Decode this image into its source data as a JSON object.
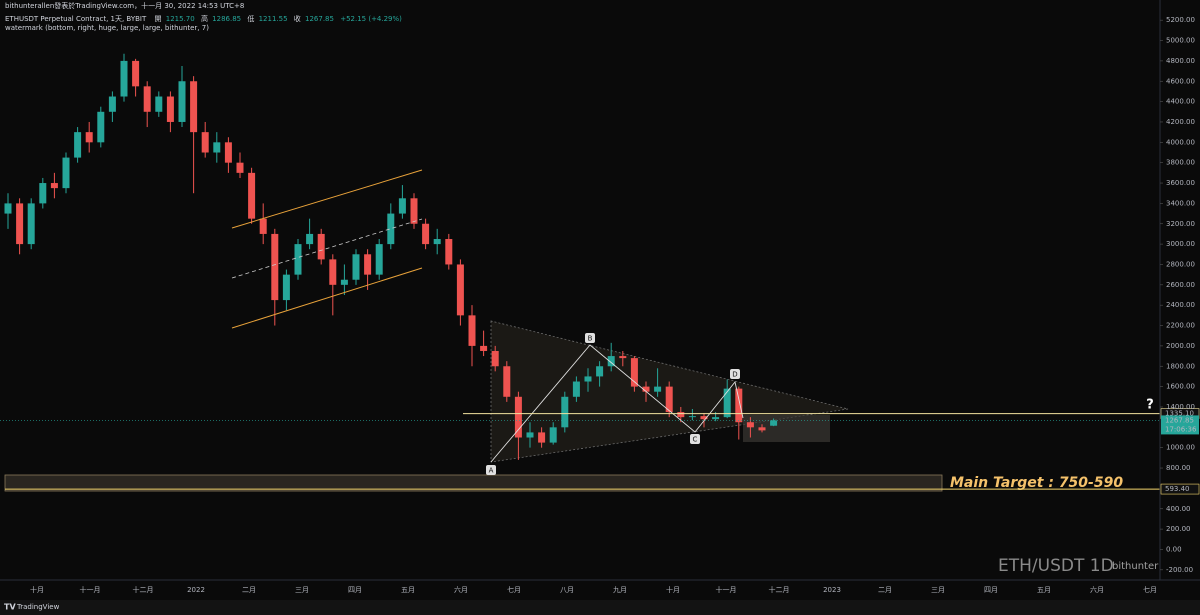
{
  "chart_data": {
    "type": "candlestick",
    "byline": "bithunterallen發表於TradingView.com，十一月 30, 2022 14:53 UTC+8",
    "title": "ETHUSDT Perpetual Contract, 1天, BYBIT",
    "ohlc_legend": {
      "labels": [
        "開",
        "高",
        "低",
        "收"
      ],
      "value_labels": [
        "1215.70",
        "1286.85",
        "1211.55",
        "1267.85"
      ],
      "change": "+52.15 (+4.29%)"
    },
    "indicator": "watermark (bottom, right, huge, large, large, bithunter, 7)",
    "up_color": "#26a69a",
    "down_color": "#ef5350",
    "candles": [
      [
        3300,
        3500,
        3150,
        3400
      ],
      [
        3400,
        3450,
        2900,
        3000
      ],
      [
        3000,
        3450,
        2950,
        3400
      ],
      [
        3400,
        3650,
        3350,
        3600
      ],
      [
        3600,
        3700,
        3450,
        3550
      ],
      [
        3550,
        3900,
        3500,
        3850
      ],
      [
        3850,
        4150,
        3800,
        4100
      ],
      [
        4100,
        4200,
        3900,
        4000
      ],
      [
        4000,
        4350,
        3950,
        4300
      ],
      [
        4300,
        4500,
        4200,
        4450
      ],
      [
        4450,
        4870,
        4400,
        4800
      ],
      [
        4800,
        4820,
        4450,
        4550
      ],
      [
        4550,
        4600,
        4150,
        4300
      ],
      [
        4300,
        4500,
        4250,
        4450
      ],
      [
        4450,
        4500,
        4100,
        4200
      ],
      [
        4200,
        4750,
        4150,
        4600
      ],
      [
        4600,
        4650,
        3500,
        4100
      ],
      [
        4100,
        4200,
        3850,
        3900
      ],
      [
        3900,
        4100,
        3800,
        4000
      ],
      [
        4000,
        4050,
        3700,
        3800
      ],
      [
        3800,
        3900,
        3650,
        3700
      ],
      [
        3700,
        3750,
        3200,
        3250
      ],
      [
        3250,
        3400,
        3000,
        3100
      ],
      [
        3100,
        3150,
        2200,
        2450
      ],
      [
        2450,
        2750,
        2350,
        2700
      ],
      [
        2700,
        3050,
        2650,
        3000
      ],
      [
        3000,
        3250,
        2950,
        3100
      ],
      [
        3100,
        3150,
        2800,
        2850
      ],
      [
        2850,
        2900,
        2300,
        2600
      ],
      [
        2600,
        2800,
        2500,
        2650
      ],
      [
        2650,
        2950,
        2600,
        2900
      ],
      [
        2900,
        2950,
        2550,
        2700
      ],
      [
        2700,
        3050,
        2650,
        3000
      ],
      [
        3000,
        3400,
        2950,
        3300
      ],
      [
        3300,
        3580,
        3250,
        3450
      ],
      [
        3450,
        3500,
        3150,
        3200
      ],
      [
        3200,
        3250,
        2950,
        3000
      ],
      [
        3000,
        3150,
        2900,
        3050
      ],
      [
        3050,
        3100,
        2750,
        2800
      ],
      [
        2800,
        2850,
        2200,
        2300
      ],
      [
        2300,
        2400,
        1800,
        2000
      ],
      [
        2000,
        2150,
        1900,
        1950
      ],
      [
        1950,
        2000,
        1750,
        1800
      ],
      [
        1800,
        1850,
        1450,
        1500
      ],
      [
        1500,
        1550,
        880,
        1100
      ],
      [
        1100,
        1250,
        1000,
        1150
      ],
      [
        1150,
        1200,
        1000,
        1050
      ],
      [
        1050,
        1250,
        1030,
        1200
      ],
      [
        1200,
        1550,
        1150,
        1500
      ],
      [
        1500,
        1700,
        1450,
        1650
      ],
      [
        1650,
        1780,
        1550,
        1700
      ],
      [
        1700,
        1850,
        1600,
        1800
      ],
      [
        1800,
        2030,
        1750,
        1900
      ],
      [
        1900,
        1950,
        1800,
        1880
      ],
      [
        1880,
        1900,
        1550,
        1600
      ],
      [
        1600,
        1650,
        1450,
        1550
      ],
      [
        1550,
        1780,
        1500,
        1600
      ],
      [
        1600,
        1650,
        1300,
        1350
      ],
      [
        1350,
        1400,
        1250,
        1300
      ],
      [
        1300,
        1380,
        1270,
        1310
      ],
      [
        1310,
        1340,
        1200,
        1280
      ],
      [
        1280,
        1350,
        1260,
        1300
      ],
      [
        1300,
        1670,
        1290,
        1580
      ],
      [
        1580,
        1600,
        1080,
        1250
      ],
      [
        1250,
        1300,
        1100,
        1200
      ],
      [
        1200,
        1230,
        1150,
        1170
      ],
      [
        1215.7,
        1286.85,
        1211.55,
        1267.85
      ]
    ],
    "ylim": [
      -300,
      5300
    ],
    "yticks": [
      {
        "value": 5200,
        "label": "5200.00"
      },
      {
        "value": 5000,
        "label": "5000.00"
      },
      {
        "value": 4800,
        "label": "4800.00"
      },
      {
        "value": 4600,
        "label": "4600.00"
      },
      {
        "value": 4400,
        "label": "4400.00"
      },
      {
        "value": 4200,
        "label": "4200.00"
      },
      {
        "value": 4000,
        "label": "4000.00"
      },
      {
        "value": 3800,
        "label": "3800.00"
      },
      {
        "value": 3600,
        "label": "3600.00"
      },
      {
        "value": 3400,
        "label": "3400.00"
      },
      {
        "value": 3200,
        "label": "3200.00"
      },
      {
        "value": 3000,
        "label": "3000.00"
      },
      {
        "value": 2800,
        "label": "2800.00"
      },
      {
        "value": 2600,
        "label": "2600.00"
      },
      {
        "value": 2400,
        "label": "2400.00"
      },
      {
        "value": 2200,
        "label": "2200.00"
      },
      {
        "value": 2000,
        "label": "2000.00"
      },
      {
        "value": 1800,
        "label": "1800.00"
      },
      {
        "value": 1600,
        "label": "1600.00"
      },
      {
        "value": 1400,
        "label": "1400.00"
      },
      {
        "value": 1000,
        "label": "1000.00"
      },
      {
        "value": 800,
        "label": "800.00"
      },
      {
        "value": 400,
        "label": "400.00"
      },
      {
        "value": 200,
        "label": "200.00"
      },
      {
        "value": 0,
        "label": "0.00"
      },
      {
        "value": -200,
        "label": "-200.00"
      }
    ],
    "xtick_labels": [
      "十月",
      "十一月",
      "十二月",
      "2022",
      "二月",
      "三月",
      "四月",
      "五月",
      "六月",
      "七月",
      "八月",
      "九月",
      "十月",
      "十一月",
      "十二月",
      "2023",
      "二月",
      "三月",
      "四月",
      "五月",
      "六月",
      "七月"
    ],
    "price_lines": [
      {
        "value": 1335.1,
        "label": "1335.10",
        "color": "#f3e4a0"
      },
      {
        "value": 593.4,
        "label": "593.40",
        "color": "#f5d76e"
      }
    ],
    "last_price_label": "1267.85",
    "countdown": "17:06:36",
    "pattern_labels": [
      "A",
      "B",
      "C",
      "D"
    ],
    "target_annotation": "Main Target : 750-590",
    "question_mark": "?",
    "watermark": "ETH/USDT 1D",
    "watermark_author": "bithunter",
    "footer": "TradingView"
  }
}
